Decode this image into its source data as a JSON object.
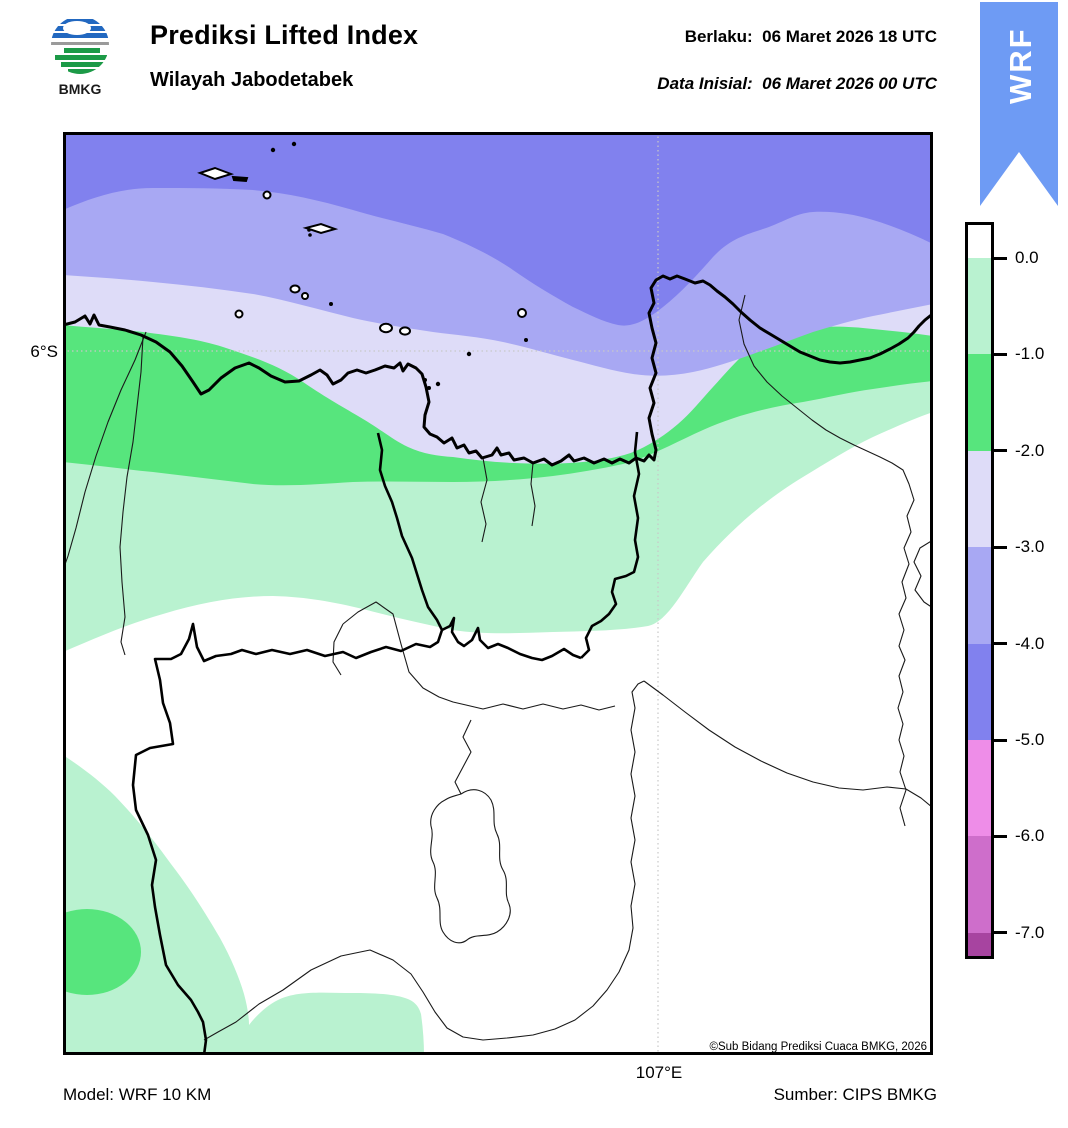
{
  "header": {
    "logo_text": "BMKG",
    "title": "Prediksi Lifted Index",
    "subtitle": "Wilayah Jabodetabek",
    "valid_label": "Berlaku:",
    "valid_value": "06 Maret 2026 18 UTC",
    "init_label": "Data Inisial:",
    "init_value": "06 Maret 2026 00 UTC",
    "ribbon_label": "WRF",
    "ribbon_color": "#6e9bf4"
  },
  "map": {
    "lat_tick": "6°S",
    "lon_tick": "107°E",
    "copyright": "©Sub Bidang Prediksi Cuaca BMKG, 2026",
    "colors": {
      "li_0": "#ffffff",
      "li_m1": "#b9f2d0",
      "li_m2": "#57e57d",
      "li_m3": "#dedcf8",
      "li_m4": "#a8a8f3",
      "li_m5": "#8181ee"
    }
  },
  "colorbar": {
    "ticks": [
      "0.0",
      "-1.0",
      "-2.0",
      "-3.0",
      "-4.0",
      "-5.0",
      "-6.0",
      "-7.0"
    ],
    "segments": [
      {
        "value": "above 0.0",
        "color": "#ffffff"
      },
      {
        "value": "0.0 to -1.0",
        "color": "#b9f2d0"
      },
      {
        "value": "-1.0 to -2.0",
        "color": "#57e57d"
      },
      {
        "value": "-2.0 to -3.0",
        "color": "#dedcf8"
      },
      {
        "value": "-3.0 to -4.0",
        "color": "#a8a8f3"
      },
      {
        "value": "-4.0 to -5.0",
        "color": "#8181ee"
      },
      {
        "value": "-5.0 to -6.0",
        "color": "#ee8de8"
      },
      {
        "value": "-6.0 to -7.0",
        "color": "#ce6ecb"
      },
      {
        "value": "below -7.0",
        "color": "#a744a0"
      }
    ]
  },
  "footer": {
    "model": "Model: WRF 10 KM",
    "source": "Sumber: CIPS BMKG"
  }
}
